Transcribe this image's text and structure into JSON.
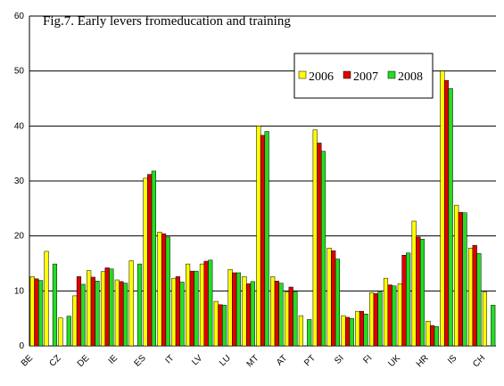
{
  "chart_data": {
    "type": "bar",
    "title": "Fig.7. Early levers fromeducation and training",
    "categories": [
      "BE",
      null,
      "CZ",
      null,
      "DE",
      null,
      "IE",
      null,
      "ES",
      null,
      "IT",
      null,
      "LV",
      null,
      "LU",
      null,
      "MT",
      null,
      "AT",
      null,
      "PT",
      null,
      "SI",
      null,
      "FI",
      null,
      "UK",
      null,
      "HR",
      null,
      "IS",
      null,
      "CH"
    ],
    "series": [
      {
        "name": "2006",
        "color": "#ffff00",
        "values": [
          12.6,
          17.2,
          5.1,
          9.1,
          13.7,
          13.5,
          12.0,
          15.5,
          30.5,
          20.7,
          12.3,
          14.9,
          14.9,
          8.1,
          13.9,
          12.6,
          40.0,
          12.6,
          9.8,
          5.5,
          39.3,
          17.8,
          5.5,
          6.3,
          9.7,
          12.3,
          11.3,
          22.7,
          4.5,
          50.0,
          25.6,
          17.8,
          9.8
        ]
      },
      {
        "name": "2007",
        "color": "#e00000",
        "values": [
          12.2,
          null,
          null,
          12.6,
          12.5,
          14.2,
          11.7,
          null,
          31.2,
          20.4,
          12.6,
          13.6,
          15.4,
          7.5,
          13.3,
          11.3,
          38.3,
          11.8,
          10.7,
          null,
          36.9,
          17.3,
          5.2,
          6.3,
          9.5,
          11.1,
          16.5,
          19.8,
          3.7,
          48.3,
          24.3,
          18.3,
          null
        ]
      },
      {
        "name": "2008",
        "color": "#22dd22",
        "values": [
          11.9,
          14.9,
          5.4,
          11.2,
          11.8,
          14.0,
          11.4,
          14.9,
          31.8,
          19.8,
          11.6,
          13.6,
          15.6,
          7.4,
          13.3,
          11.7,
          39.0,
          11.4,
          9.9,
          4.8,
          35.4,
          15.8,
          5.0,
          5.8,
          9.8,
          10.9,
          16.9,
          19.4,
          3.5,
          46.8,
          24.2,
          16.8,
          7.4
        ]
      }
    ],
    "ylim": [
      0,
      60
    ],
    "yticks": [
      0,
      10,
      20,
      30,
      40,
      50,
      60
    ],
    "grid": true
  }
}
